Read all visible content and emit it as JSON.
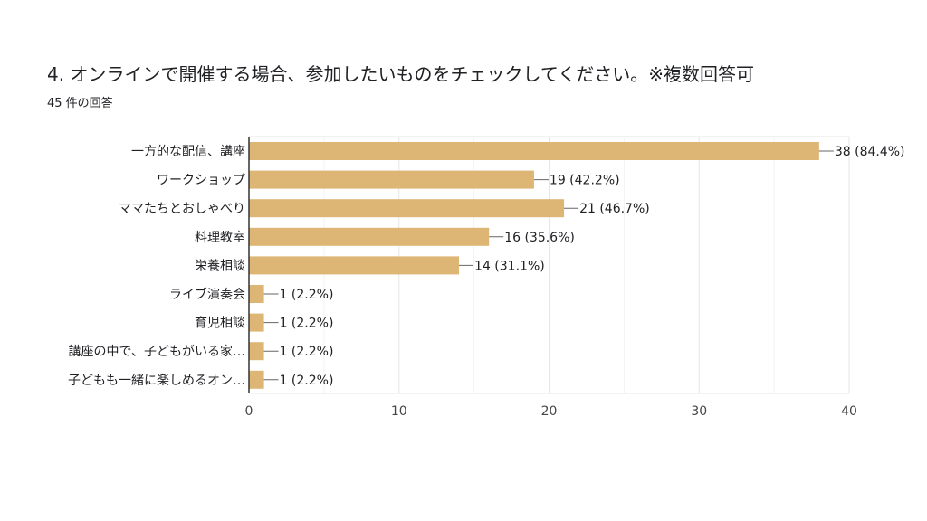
{
  "header": {
    "question": "4. オンラインで開催する場合、参加したいものをチェックしてください。※複数回答可",
    "response_count": "45 件の回答"
  },
  "colors": {
    "bar": "#DDB574",
    "grid": "#E6E6E6",
    "axis": "#333333",
    "leader": "#666666"
  },
  "chart_data": {
    "type": "bar",
    "orientation": "horizontal",
    "title": "4. オンラインで開催する場合、参加したいものをチェックしてください。※複数回答可",
    "categories": [
      "一方的な配信、講座",
      "ワークショップ",
      "ママたちとおしゃべり",
      "料理教室",
      "栄養相談",
      "ライブ演奏会",
      "育児相談",
      "講座の中で、子どもがいる家…",
      "子どもも一緒に楽しめるオン…"
    ],
    "values": [
      38,
      19,
      21,
      16,
      14,
      1,
      1,
      1,
      1
    ],
    "data_labels": [
      "38 (84.4%)",
      "19 (42.2%)",
      "21 (46.7%)",
      "16 (35.6%)",
      "14 (31.1%)",
      "1 (2.2%)",
      "1 (2.2%)",
      "1 (2.2%)",
      "1 (2.2%)"
    ],
    "xlim": [
      0,
      40
    ],
    "xticks": [
      0,
      10,
      20,
      30,
      40
    ],
    "xlabel": "",
    "ylabel": "",
    "grid": true
  }
}
